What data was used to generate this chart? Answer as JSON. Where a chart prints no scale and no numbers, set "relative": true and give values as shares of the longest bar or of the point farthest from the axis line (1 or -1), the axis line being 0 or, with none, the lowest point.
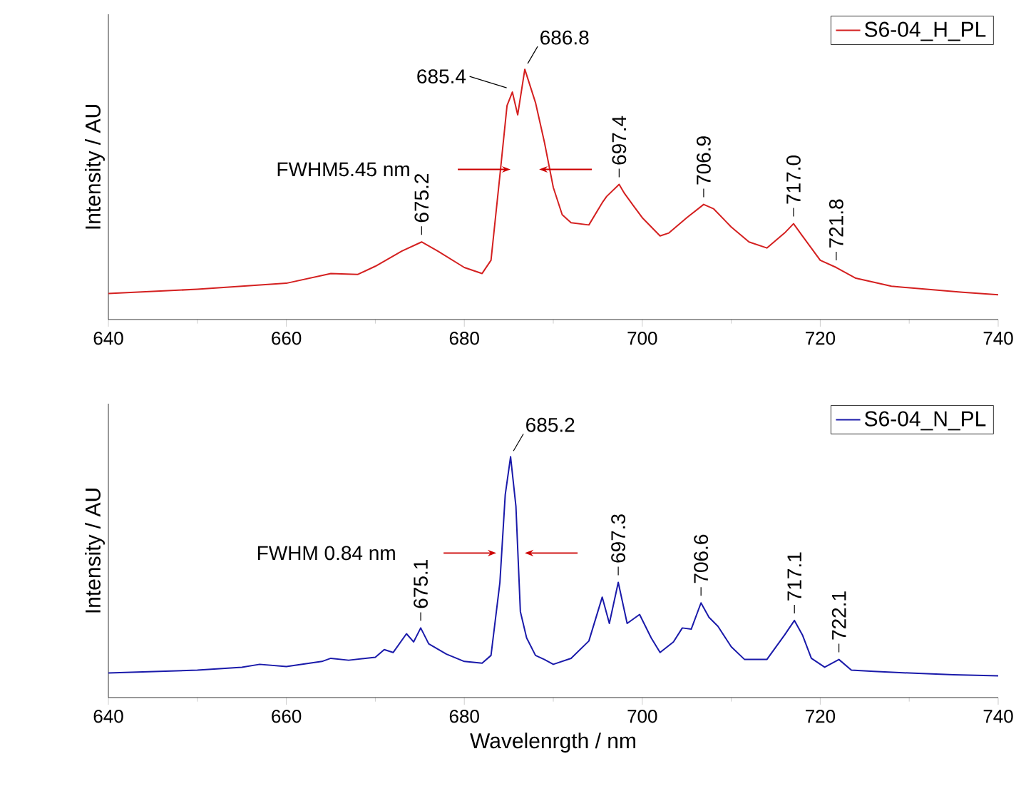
{
  "chart_data": [
    {
      "type": "line",
      "relative": true,
      "ylabel": "Intensity / AU",
      "legend": "top right",
      "xlim": [
        640,
        740
      ],
      "xticks": [
        640,
        660,
        680,
        700,
        720,
        740
      ],
      "x": [
        640,
        650,
        660,
        665,
        668,
        670,
        673,
        675.2,
        677,
        680,
        682,
        683,
        684,
        684.8,
        685.4,
        686,
        686.8,
        688,
        689,
        690,
        691,
        692,
        694,
        695.5,
        696,
        697.4,
        698,
        699,
        700,
        702,
        703,
        705,
        706.9,
        708,
        710,
        712,
        714,
        716,
        717,
        718,
        720,
        721.8,
        724,
        728,
        732,
        736,
        740
      ],
      "series": [
        {
          "name": "S6-04_H_PL",
          "color": "#d42020",
          "values": [
            0.104,
            0.121,
            0.145,
            0.184,
            0.18,
            0.213,
            0.274,
            0.31,
            0.274,
            0.208,
            0.184,
            0.237,
            0.576,
            0.855,
            0.909,
            0.818,
            1,
            0.867,
            0.709,
            0.528,
            0.419,
            0.387,
            0.378,
            0.467,
            0.492,
            0.54,
            0.504,
            0.455,
            0.407,
            0.334,
            0.346,
            0.407,
            0.46,
            0.443,
            0.37,
            0.31,
            0.286,
            0.346,
            0.383,
            0.334,
            0.237,
            0.208,
            0.165,
            0.133,
            0.121,
            0.109,
            0.099
          ]
        }
      ],
      "annotations": [
        {
          "text": "675.2",
          "x": 675.2,
          "y": 0.31
        },
        {
          "text": "685.4",
          "x": 685.4,
          "y": 0.909
        },
        {
          "text": "686.8",
          "x": 686.8,
          "y": 1
        },
        {
          "text": "697.4",
          "x": 697.4,
          "y": 0.54
        },
        {
          "text": "706.9",
          "x": 706.9,
          "y": 0.46
        },
        {
          "text": "717.0",
          "x": 717.0,
          "y": 0.383
        },
        {
          "text": "721.8",
          "x": 721.8,
          "y": 0.208
        },
        "FWHM5.45 nm"
      ]
    },
    {
      "type": "line",
      "relative": true,
      "ylabel": "Intensity / AU",
      "xlabel": "Wavelenrgth / nm",
      "legend": "top right",
      "xlim": [
        640,
        740
      ],
      "xticks": [
        640,
        660,
        680,
        700,
        720,
        740
      ],
      "x": [
        640,
        650,
        655,
        657,
        660,
        664,
        665,
        667,
        670,
        671,
        672,
        673.5,
        674.3,
        675.1,
        676,
        678,
        680,
        682,
        683,
        684,
        684.6,
        685.2,
        685.8,
        686.3,
        687,
        688,
        689,
        690,
        692,
        694,
        695.5,
        696.3,
        697.3,
        698.3,
        699.7,
        701,
        702,
        703.5,
        704.5,
        705.5,
        706.6,
        707.5,
        708.5,
        710,
        711.5,
        714,
        716,
        717.1,
        718,
        719,
        720.5,
        722.1,
        723.5,
        726,
        730,
        735,
        740
      ],
      "series": [
        {
          "name": "S6-04_N_PL",
          "color": "#1a1aaa",
          "values": [
            0.102,
            0.114,
            0.126,
            0.138,
            0.129,
            0.15,
            0.163,
            0.155,
            0.167,
            0.199,
            0.187,
            0.265,
            0.231,
            0.289,
            0.223,
            0.18,
            0.15,
            0.143,
            0.175,
            0.478,
            0.842,
            1,
            0.794,
            0.357,
            0.248,
            0.175,
            0.158,
            0.138,
            0.163,
            0.235,
            0.417,
            0.308,
            0.478,
            0.308,
            0.345,
            0.248,
            0.187,
            0.231,
            0.289,
            0.284,
            0.393,
            0.333,
            0.296,
            0.211,
            0.158,
            0.158,
            0.26,
            0.32,
            0.26,
            0.163,
            0.126,
            0.158,
            0.114,
            0.109,
            0.102,
            0.095,
            0.09
          ]
        }
      ],
      "annotations": [
        {
          "text": "675.1",
          "x": 675.1,
          "y": 0.289
        },
        {
          "text": "685.2",
          "x": 685.2,
          "y": 1
        },
        {
          "text": "697.3",
          "x": 697.3,
          "y": 0.478
        },
        {
          "text": "706.6",
          "x": 706.6,
          "y": 0.393
        },
        {
          "text": "717.1",
          "x": 717.1,
          "y": 0.32
        },
        {
          "text": "722.1",
          "x": 722.1,
          "y": 0.158
        },
        "FWHM 0.84 nm"
      ]
    }
  ]
}
